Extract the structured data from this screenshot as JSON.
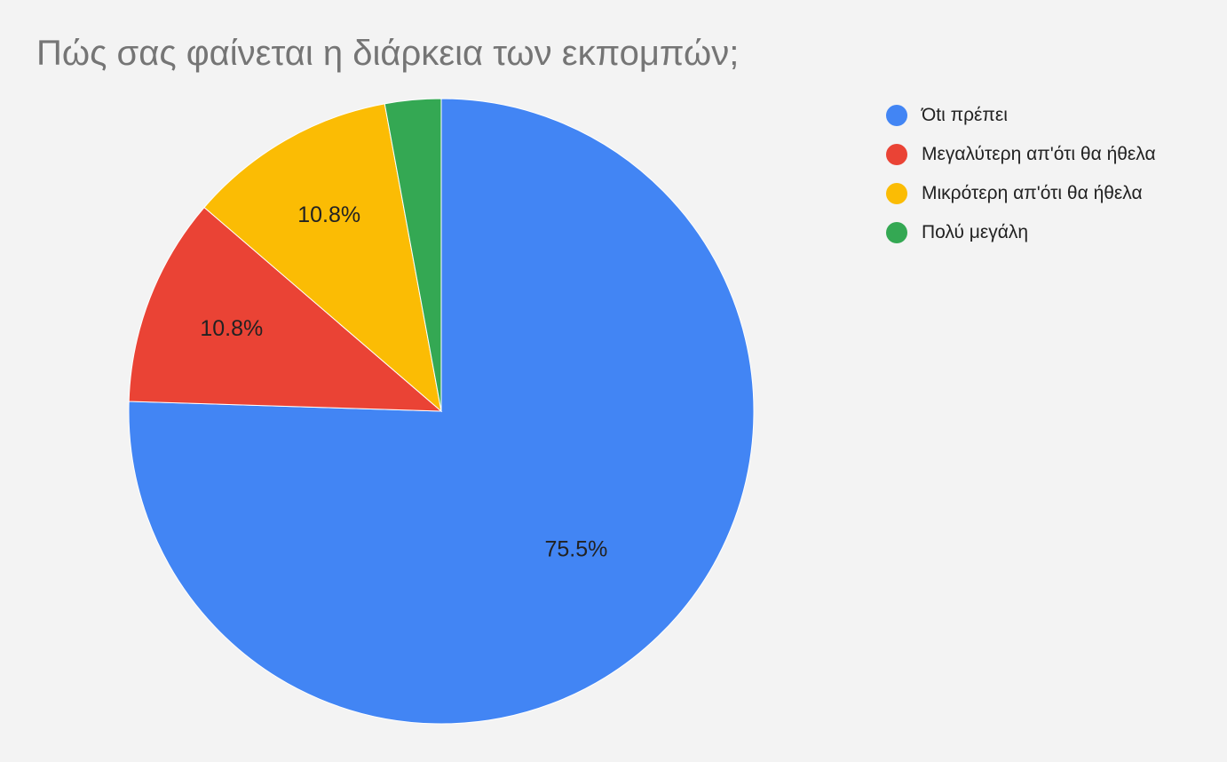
{
  "chart_data": {
    "type": "pie",
    "title": "Πώς σας φαίνεται η διάρκεια των εκπομπών;",
    "slices": [
      {
        "label": "Όtι πρέπει",
        "value": 75.5,
        "color": "#4285f4",
        "data_label": "75.5%"
      },
      {
        "label": "Μεγαλύτερη απ'ότι θα ήθελα",
        "value": 10.8,
        "color": "#ea4335",
        "data_label": "10.8%"
      },
      {
        "label": "Μικρότερη απ'ότι θα ήθελα",
        "value": 10.8,
        "color": "#fbbc04",
        "data_label": "10.8%"
      },
      {
        "label": "Πολύ μεγάλη",
        "value": 2.9,
        "color": "#34a853",
        "data_label": ""
      }
    ],
    "legend_position": "right",
    "grid": false
  }
}
